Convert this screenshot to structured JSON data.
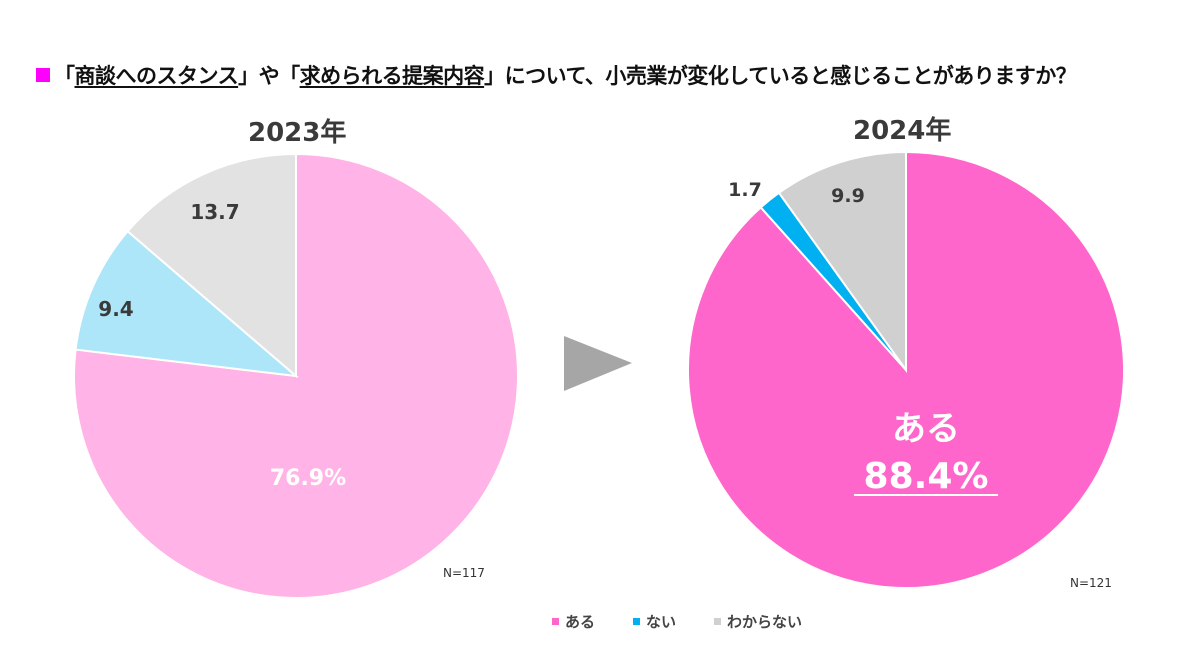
{
  "header": {
    "marker_color": "#ff00ff",
    "title_parts": [
      {
        "text": "「",
        "underline": false
      },
      {
        "text": "商談へのスタンス",
        "underline": true
      },
      {
        "text": "」や「",
        "underline": false
      },
      {
        "text": "求められる提案内容",
        "underline": true
      },
      {
        "text": "」について、小売業が変化していると感じることがありますか？",
        "underline": false
      }
    ]
  },
  "arrow": {
    "color": "#a6a6a6"
  },
  "legend": [
    {
      "label": "ある",
      "color": "#ff66cc"
    },
    {
      "label": "ない",
      "color": "#00b0f0"
    },
    {
      "label": "わからない",
      "color": "#d0d0d0"
    }
  ],
  "chart_data": [
    {
      "type": "pie",
      "title": "2023年",
      "sample_size": "N=117",
      "start_angle": "12 o'clock, clockwise",
      "slices": [
        {
          "label": "ある",
          "value": 76.9,
          "display": "76.9%",
          "color": "#ffb3e6",
          "label_color": "#ffffff"
        },
        {
          "label": "ない",
          "value": 9.4,
          "display": "9.4",
          "color": "#ade6f8",
          "label_color": "#3a3a3a"
        },
        {
          "label": "わからない",
          "value": 13.7,
          "display": "13.7",
          "color": "#e2e2e2",
          "label_color": "#3a3a3a"
        }
      ]
    },
    {
      "type": "pie",
      "title": "2024年",
      "sample_size": "N=121",
      "start_angle": "12 o'clock, clockwise",
      "highlight": {
        "label": "ある",
        "value": "88.4%"
      },
      "slices": [
        {
          "label": "ある",
          "value": 88.4,
          "display": "88.4%",
          "color": "#ff66cc",
          "label_color": "#ffffff"
        },
        {
          "label": "ない",
          "value": 1.7,
          "display": "1.7",
          "color": "#00b0f0",
          "label_color": "#3a3a3a"
        },
        {
          "label": "わからない",
          "value": 9.9,
          "display": "9.9",
          "color": "#d0d0d0",
          "label_color": "#3a3a3a"
        }
      ]
    }
  ]
}
